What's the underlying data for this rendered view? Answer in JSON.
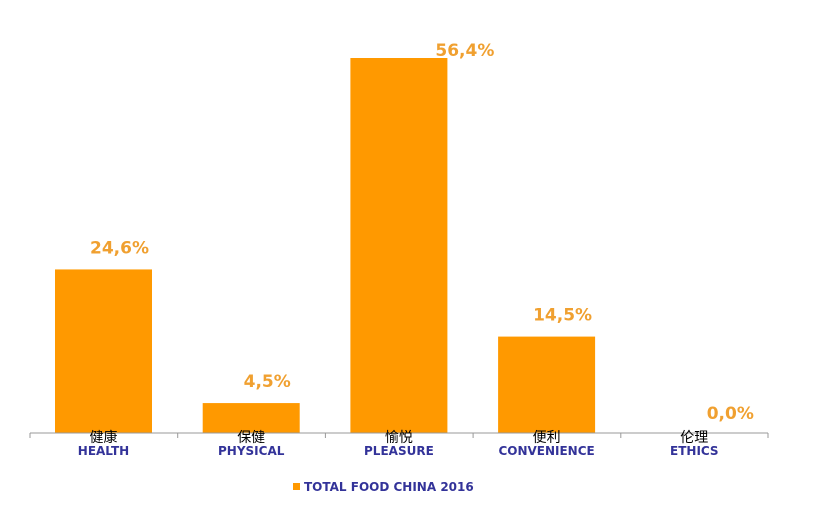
{
  "chart_data": {
    "type": "bar",
    "categories": [
      "HEALTH",
      "PHYSICAL",
      "PLEASURE",
      "CONVENIENCE",
      "ETHICS"
    ],
    "categories_zh": [
      "健康",
      "保健",
      "愉悦",
      "便利",
      "伦理"
    ],
    "values": [
      24.6,
      4.5,
      56.4,
      14.5,
      0.0
    ],
    "value_labels": [
      "24,6%",
      "4,5%",
      "56,4%",
      "14,5%",
      "0,0%"
    ],
    "series": [
      {
        "name": "TOTAL FOOD CHINA 2016",
        "values": [
          24.6,
          4.5,
          56.4,
          14.5,
          0.0
        ]
      }
    ],
    "title": "",
    "xlabel": "",
    "ylabel": "",
    "ylim": [
      0,
      60
    ],
    "grid": false,
    "legend": "bottom-center",
    "colors": {
      "bar": "#FF9900",
      "value_label": "#F0A030",
      "category_label": "#333399",
      "axis": "#999999",
      "zh_label": "#000000"
    }
  }
}
